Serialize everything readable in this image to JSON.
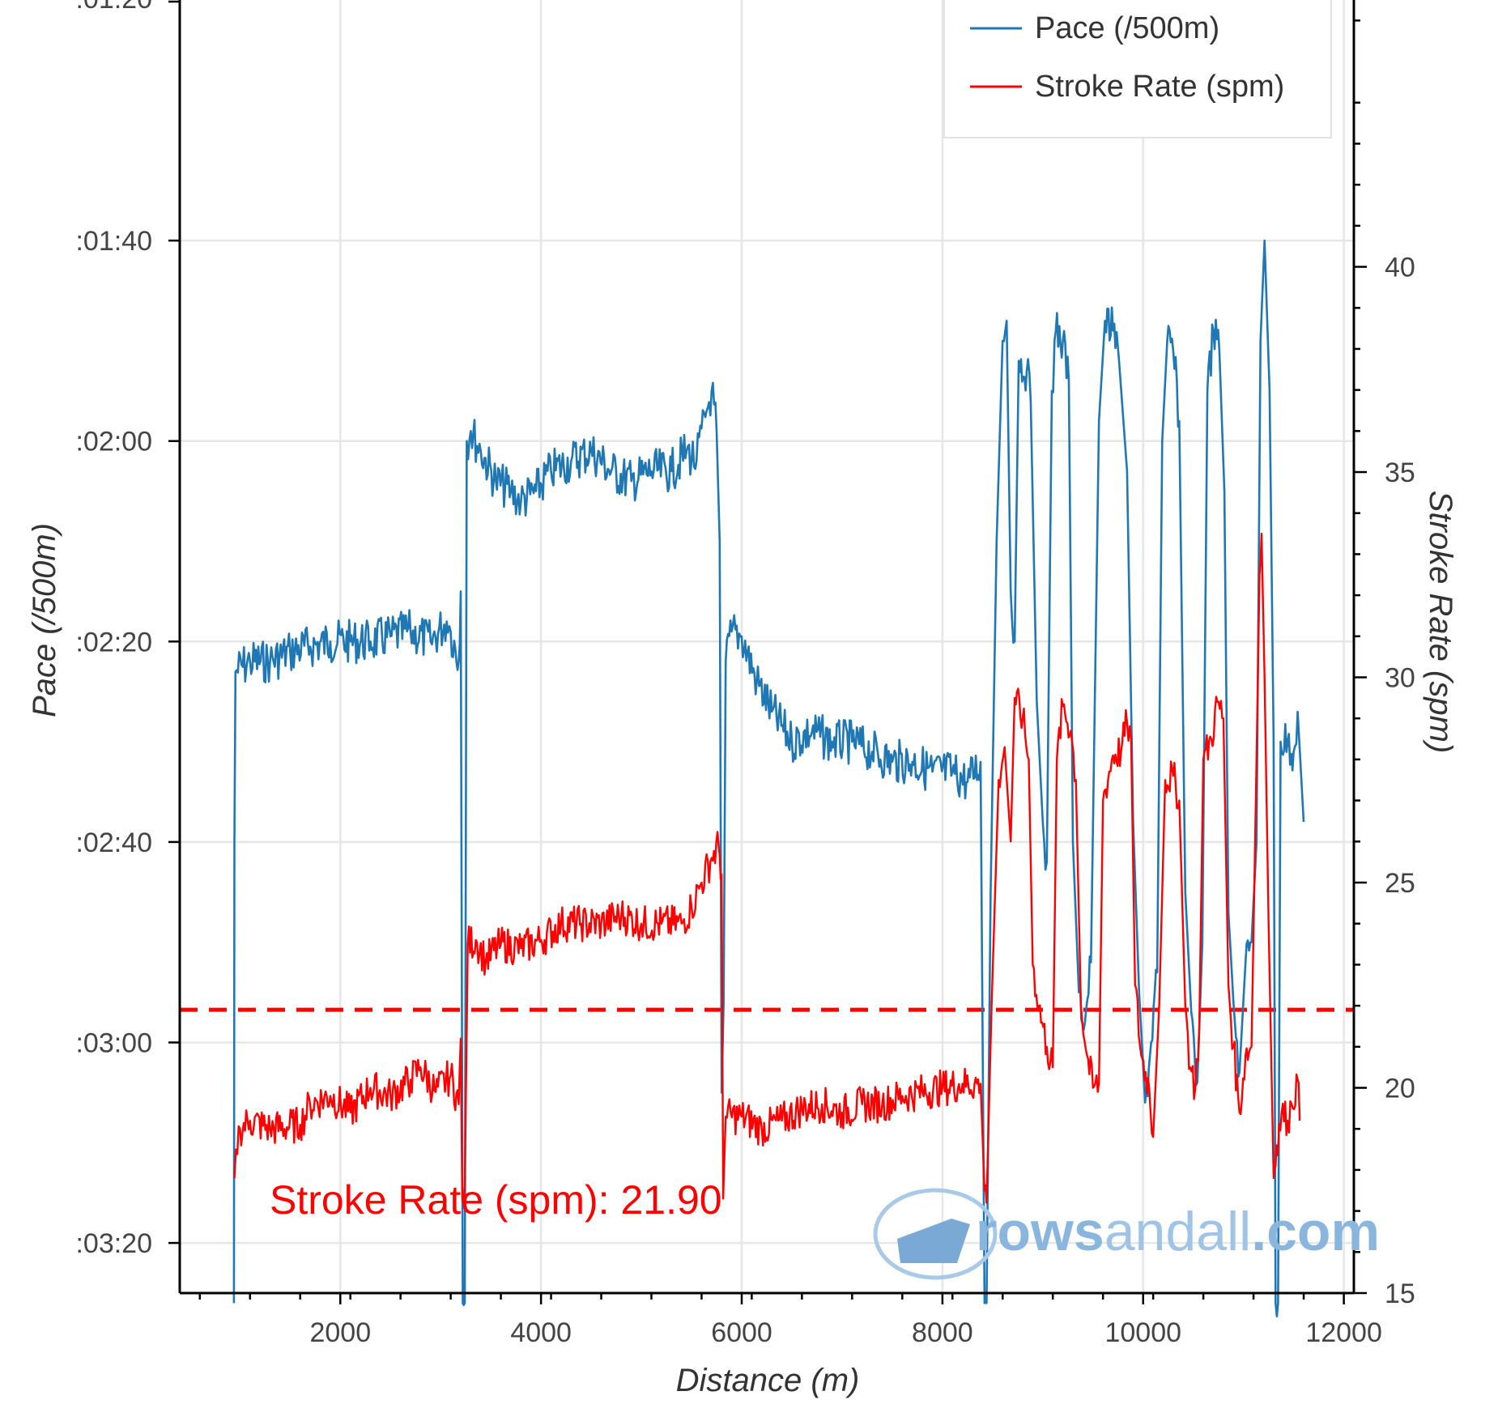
{
  "chart_data": {
    "type": "line",
    "xlabel": "Distance (m)",
    "ylabel": "Pace (/500m)",
    "y2label": "Stroke Rate (spm)",
    "xlim": [
      400,
      12100
    ],
    "ylim_pace_seconds": [
      205,
      76
    ],
    "y2lim": [
      15,
      46.5
    ],
    "x_ticks": [
      2000,
      4000,
      6000,
      8000,
      10000,
      12000
    ],
    "y_ticks": [
      {
        "value": 100,
        "label": ":01:40"
      },
      {
        "value": 120,
        "label": ":02:00"
      },
      {
        "value": 140,
        "label": ":02:20"
      },
      {
        "value": 160,
        "label": ":02:40"
      },
      {
        "value": 180,
        "label": ":03:00"
      },
      {
        "value": 200,
        "label": ":03:20"
      }
    ],
    "y_top_partial_label": ":01:20",
    "y2_ticks": [
      15,
      20,
      25,
      30,
      35,
      40
    ],
    "grid": true,
    "legend_position": "top-right",
    "series": [
      {
        "name": "Pace (/500m)",
        "color": "#1f77b4",
        "axis": "pace",
        "points": [
          [
            940,
            206
          ],
          [
            945,
            160
          ],
          [
            955,
            143
          ],
          [
            1100,
            142
          ],
          [
            1300,
            142
          ],
          [
            1500,
            141
          ],
          [
            1700,
            140.5
          ],
          [
            1900,
            140
          ],
          [
            2100,
            140
          ],
          [
            2300,
            140
          ],
          [
            2500,
            139.5
          ],
          [
            2700,
            139
          ],
          [
            2900,
            140
          ],
          [
            3060,
            138
          ],
          [
            3100,
            139
          ],
          [
            3180,
            142
          ],
          [
            3200,
            135
          ],
          [
            3220,
            206
          ],
          [
            3240,
            206
          ],
          [
            3260,
            120
          ],
          [
            3300,
            119
          ],
          [
            3400,
            121
          ],
          [
            3550,
            124
          ],
          [
            3700,
            125
          ],
          [
            3800,
            126
          ],
          [
            3950,
            125
          ],
          [
            4100,
            123
          ],
          [
            4300,
            122
          ],
          [
            4500,
            121
          ],
          [
            4700,
            123
          ],
          [
            4900,
            124
          ],
          [
            5100,
            123
          ],
          [
            5300,
            123
          ],
          [
            5450,
            121
          ],
          [
            5550,
            122
          ],
          [
            5650,
            117
          ],
          [
            5700,
            115
          ],
          [
            5750,
            119
          ],
          [
            5780,
            130
          ],
          [
            5800,
            185
          ],
          [
            5820,
            176
          ],
          [
            5840,
            142
          ],
          [
            5900,
            139
          ],
          [
            6000,
            139.5
          ],
          [
            6150,
            144
          ],
          [
            6300,
            147
          ],
          [
            6500,
            150
          ],
          [
            6700,
            149
          ],
          [
            6900,
            150
          ],
          [
            7100,
            150
          ],
          [
            7300,
            151
          ],
          [
            7500,
            152
          ],
          [
            7700,
            152
          ],
          [
            7900,
            153
          ],
          [
            8100,
            153
          ],
          [
            8250,
            154
          ],
          [
            8380,
            152
          ],
          [
            8420,
            206
          ],
          [
            8440,
            206
          ],
          [
            8480,
            165
          ],
          [
            8540,
            130
          ],
          [
            8600,
            110
          ],
          [
            8640,
            108
          ],
          [
            8680,
            135
          ],
          [
            8720,
            140
          ],
          [
            8760,
            112
          ],
          [
            8840,
            113
          ],
          [
            8880,
            116
          ],
          [
            8940,
            146
          ],
          [
            9000,
            158
          ],
          [
            9040,
            162
          ],
          [
            9090,
            115
          ],
          [
            9130,
            109
          ],
          [
            9200,
            110
          ],
          [
            9260,
            114
          ],
          [
            9300,
            160
          ],
          [
            9360,
            175
          ],
          [
            9420,
            178
          ],
          [
            9480,
            172
          ],
          [
            9560,
            118
          ],
          [
            9620,
            108
          ],
          [
            9700,
            109
          ],
          [
            9760,
            112
          ],
          [
            9840,
            123
          ],
          [
            9900,
            158
          ],
          [
            9960,
            175
          ],
          [
            10020,
            186
          ],
          [
            10080,
            180
          ],
          [
            10140,
            173
          ],
          [
            10190,
            120
          ],
          [
            10240,
            110
          ],
          [
            10300,
            111
          ],
          [
            10360,
            118
          ],
          [
            10420,
            165
          ],
          [
            10480,
            177
          ],
          [
            10540,
            184
          ],
          [
            10590,
            170
          ],
          [
            10640,
            115
          ],
          [
            10700,
            109
          ],
          [
            10760,
            111
          ],
          [
            10810,
            125
          ],
          [
            10850,
            167
          ],
          [
            10900,
            176
          ],
          [
            10960,
            183
          ],
          [
            11020,
            172
          ],
          [
            11080,
            170
          ],
          [
            11130,
            160
          ],
          [
            11170,
            110
          ],
          [
            11210,
            100
          ],
          [
            11260,
            115
          ],
          [
            11300,
            150
          ],
          [
            11320,
            206
          ],
          [
            11345,
            206
          ],
          [
            11370,
            150
          ],
          [
            11440,
            150
          ],
          [
            11500,
            151
          ],
          [
            11540,
            147
          ],
          [
            11600,
            158
          ]
        ]
      },
      {
        "name": "Stroke Rate (spm)",
        "color": "#ff0000",
        "axis": "spm",
        "points": [
          [
            945,
            17.8
          ],
          [
            960,
            18.5
          ],
          [
            1000,
            19.0
          ],
          [
            1100,
            19.2
          ],
          [
            1300,
            19.0
          ],
          [
            1600,
            19.1
          ],
          [
            1700,
            19.6
          ],
          [
            1900,
            19.8
          ],
          [
            2100,
            19.4
          ],
          [
            2300,
            20.0
          ],
          [
            2500,
            19.8
          ],
          [
            2700,
            20.2
          ],
          [
            2800,
            20.5
          ],
          [
            2950,
            19.9
          ],
          [
            3100,
            20.3
          ],
          [
            3180,
            19.6
          ],
          [
            3200,
            21.2
          ],
          [
            3215,
            17.3
          ],
          [
            3240,
            17.6
          ],
          [
            3270,
            23.5
          ],
          [
            3350,
            23.6
          ],
          [
            3450,
            23.1
          ],
          [
            3600,
            23.5
          ],
          [
            3800,
            23.4
          ],
          [
            4000,
            23.6
          ],
          [
            4200,
            24.0
          ],
          [
            4400,
            24.0
          ],
          [
            4600,
            24.0
          ],
          [
            4800,
            24.2
          ],
          [
            5000,
            24.0
          ],
          [
            5200,
            24.0
          ],
          [
            5400,
            24.0
          ],
          [
            5500,
            24.4
          ],
          [
            5600,
            25.0
          ],
          [
            5700,
            25.6
          ],
          [
            5770,
            25.9
          ],
          [
            5800,
            25.2
          ],
          [
            5815,
            17.3
          ],
          [
            5840,
            19.3
          ],
          [
            6000,
            19.3
          ],
          [
            6200,
            19.0
          ],
          [
            6400,
            19.2
          ],
          [
            6600,
            19.5
          ],
          [
            6800,
            19.6
          ],
          [
            7000,
            19.4
          ],
          [
            7200,
            19.6
          ],
          [
            7400,
            19.6
          ],
          [
            7600,
            19.8
          ],
          [
            7800,
            19.9
          ],
          [
            8000,
            20.0
          ],
          [
            8200,
            20.1
          ],
          [
            8380,
            20.1
          ],
          [
            8420,
            17.5
          ],
          [
            8440,
            17.2
          ],
          [
            8490,
            22.0
          ],
          [
            8560,
            27.5
          ],
          [
            8620,
            28.3
          ],
          [
            8680,
            26.0
          ],
          [
            8720,
            29.5
          ],
          [
            8800,
            29.0
          ],
          [
            8860,
            28.0
          ],
          [
            8900,
            23.0
          ],
          [
            8960,
            22.0
          ],
          [
            9040,
            21.0
          ],
          [
            9100,
            20.5
          ],
          [
            9140,
            28.0
          ],
          [
            9200,
            29.3
          ],
          [
            9280,
            28.7
          ],
          [
            9330,
            27.5
          ],
          [
            9380,
            22.0
          ],
          [
            9440,
            20.8
          ],
          [
            9500,
            20.0
          ],
          [
            9560,
            20.1
          ],
          [
            9600,
            27.0
          ],
          [
            9700,
            28.1
          ],
          [
            9780,
            28.2
          ],
          [
            9840,
            28.9
          ],
          [
            9880,
            28.5
          ],
          [
            9920,
            22.5
          ],
          [
            9980,
            20.8
          ],
          [
            10060,
            20.0
          ],
          [
            10100,
            18.8
          ],
          [
            10160,
            22.0
          ],
          [
            10220,
            27.5
          ],
          [
            10300,
            27.6
          ],
          [
            10360,
            27.0
          ],
          [
            10420,
            22.0
          ],
          [
            10470,
            20.5
          ],
          [
            10520,
            20.0
          ],
          [
            10560,
            21.5
          ],
          [
            10600,
            28.0
          ],
          [
            10680,
            28.5
          ],
          [
            10740,
            29.4
          ],
          [
            10800,
            29.0
          ],
          [
            10850,
            22.5
          ],
          [
            10900,
            21.0
          ],
          [
            10960,
            19.4
          ],
          [
            11020,
            20.8
          ],
          [
            11080,
            21.0
          ],
          [
            11130,
            28.0
          ],
          [
            11160,
            32.5
          ],
          [
            11180,
            33.5
          ],
          [
            11210,
            30.0
          ],
          [
            11250,
            24.0
          ],
          [
            11300,
            17.8
          ],
          [
            11330,
            18.6
          ],
          [
            11380,
            19.4
          ],
          [
            11440,
            19.2
          ],
          [
            11480,
            19.6
          ],
          [
            11540,
            20.2
          ],
          [
            11560,
            19.2
          ]
        ]
      }
    ],
    "reference_line": {
      "axis": "spm",
      "value": 21.9,
      "color": "#ff0000",
      "style": "dashed",
      "label": "Stroke Rate (spm): 21.90"
    }
  },
  "watermark": {
    "part_a": "rows",
    "part_b": "andall",
    "part_c": ".com"
  }
}
